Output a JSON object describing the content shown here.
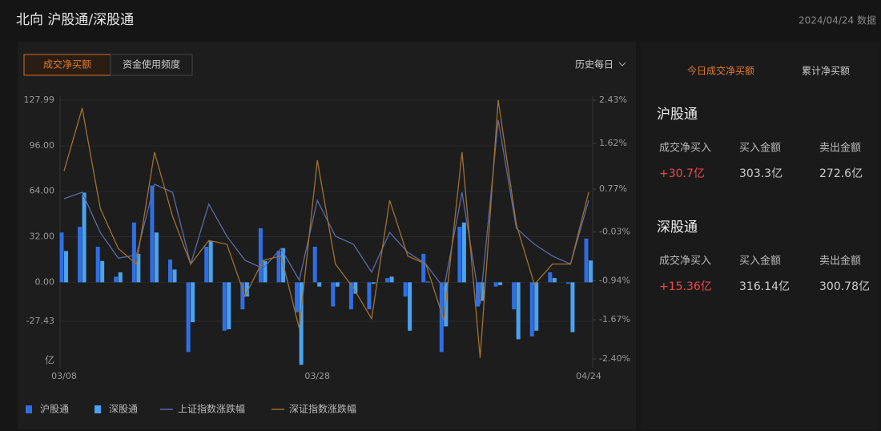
{
  "header": {
    "title": "北向 沪股通/深股通",
    "date": "2024/04/24 数据"
  },
  "tabs": [
    "成交净买额",
    "资金使用频度"
  ],
  "period": "历史每日",
  "chart_data": {
    "type": "bar",
    "categories": [
      "03/08",
      null,
      null,
      null,
      null,
      null,
      null,
      null,
      null,
      null,
      null,
      null,
      null,
      null,
      "03/28",
      null,
      null,
      null,
      null,
      null,
      null,
      null,
      null,
      null,
      null,
      null,
      null,
      null,
      null,
      "04/24"
    ],
    "y_unit": "亿",
    "ylim": [
      -60,
      127.99
    ],
    "yticks": [
      {
        "value": 127.99,
        "label": "127.99"
      },
      {
        "value": 96,
        "label": "96.00"
      },
      {
        "value": 64,
        "label": "64.00"
      },
      {
        "value": 32,
        "label": "32.00"
      },
      {
        "value": 0,
        "label": "0.00"
      },
      -27.43
    ],
    "y2lim": [
      -2.4,
      2.43
    ],
    "y2ticks": [
      {
        "value": 2.43,
        "label": "2.43%"
      },
      {
        "value": 1.62,
        "label": "1.62%"
      },
      {
        "value": 0.77,
        "label": "0.77%"
      },
      {
        "value": -0.03,
        "label": "-0.03%"
      },
      {
        "value": -0.94,
        "label": "-0.94%"
      },
      {
        "value": -1.67,
        "label": "-1.67%"
      },
      {
        "value": -2.4,
        "label": "-2.40%"
      }
    ],
    "grid": true,
    "series": [
      {
        "name": "沪股通",
        "type": "bar",
        "color": "#2f6fe4",
        "values": [
          35,
          39,
          25,
          4,
          42,
          68,
          16,
          -49,
          25,
          -34,
          -19,
          38,
          22,
          -21,
          25,
          -17,
          -19,
          -19,
          3,
          -10,
          20,
          -49,
          39,
          -17,
          -3,
          -19,
          -38,
          7,
          -1,
          30.7
        ]
      },
      {
        "name": "深股通",
        "type": "bar",
        "color": "#4aa3f0",
        "values": [
          22,
          63,
          15,
          7,
          20,
          35,
          9,
          -28,
          29,
          -33,
          -10,
          15,
          24,
          -58,
          -3,
          -3,
          -8,
          -1,
          4,
          -34,
          0.5,
          -31,
          42,
          -13,
          -2,
          -40,
          -34,
          3,
          -35,
          15.36
        ]
      },
      {
        "name": "上证指数涨跌幅",
        "type": "line",
        "axis": "y2",
        "color": "#5b6aa8",
        "values": [
          0.59,
          0.71,
          -0.04,
          -0.52,
          -0.46,
          0.86,
          0.71,
          -0.63,
          0.49,
          -0.11,
          -0.56,
          -0.71,
          -0.34,
          -0.93,
          0.56,
          -0.11,
          -0.26,
          -0.78,
          -0.04,
          -0.41,
          -0.63,
          -1.08,
          0.71,
          -1.38,
          2.06,
          0.04,
          -0.26,
          -0.48,
          -0.63,
          0.56
        ]
      },
      {
        "name": "深证指数涨跌幅",
        "type": "line",
        "axis": "y2",
        "color": "#a07030",
        "values": [
          1.11,
          2.28,
          0.41,
          -0.34,
          -0.63,
          1.46,
          0.26,
          -0.63,
          -0.19,
          -0.26,
          -1.23,
          -0.56,
          -0.48,
          -1.83,
          1.31,
          -0.63,
          -1.08,
          -1.65,
          0.56,
          -0.48,
          -0.63,
          -1.68,
          1.46,
          -2.38,
          2.43,
          0.11,
          -1.01,
          -0.63,
          -0.63,
          0.71
        ]
      }
    ]
  },
  "side": {
    "tabs": [
      "今日成交净买额",
      "累计净买额"
    ],
    "sections": [
      {
        "title": "沪股通",
        "headers": [
          "成交净买入",
          "买入金额",
          "卖出金额"
        ],
        "values": [
          "+30.7亿",
          "303.3亿",
          "272.6亿"
        ]
      },
      {
        "title": "深股通",
        "headers": [
          "成交净买入",
          "买入金额",
          "卖出金额"
        ],
        "values": [
          "+15.36亿",
          "316.14亿",
          "300.78亿"
        ]
      }
    ]
  }
}
